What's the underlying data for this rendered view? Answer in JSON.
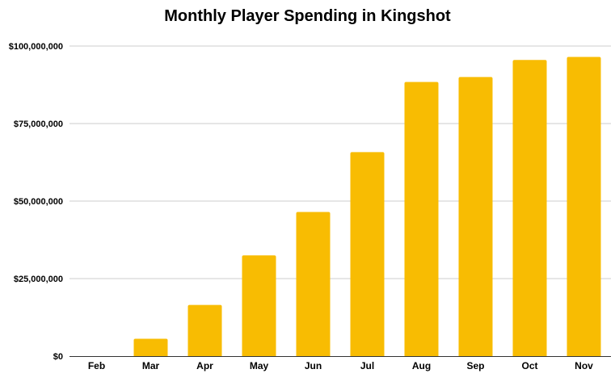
{
  "chart_data": {
    "type": "bar",
    "title": "Monthly Player Spending in Kingshot",
    "xlabel": "",
    "ylabel": "",
    "categories": [
      "Feb",
      "Mar",
      "Apr",
      "May",
      "Jun",
      "Jul",
      "Aug",
      "Sep",
      "Oct",
      "Nov"
    ],
    "values": [
      0,
      5600000,
      16500000,
      32500000,
      46500000,
      65800000,
      88400000,
      90000000,
      95500000,
      96500000
    ],
    "ylim": [
      0,
      100000000
    ],
    "yticks": [
      0,
      25000000,
      50000000,
      75000000,
      100000000
    ],
    "ytick_labels": [
      "$0",
      "$25,000,000",
      "$50,000,000",
      "$75,000,000",
      "$100,000,000"
    ],
    "grid": true,
    "legend": "none",
    "colors": {
      "bar": "#F8BC02",
      "grid": "#CCCCCC",
      "axis": "#333333"
    }
  }
}
